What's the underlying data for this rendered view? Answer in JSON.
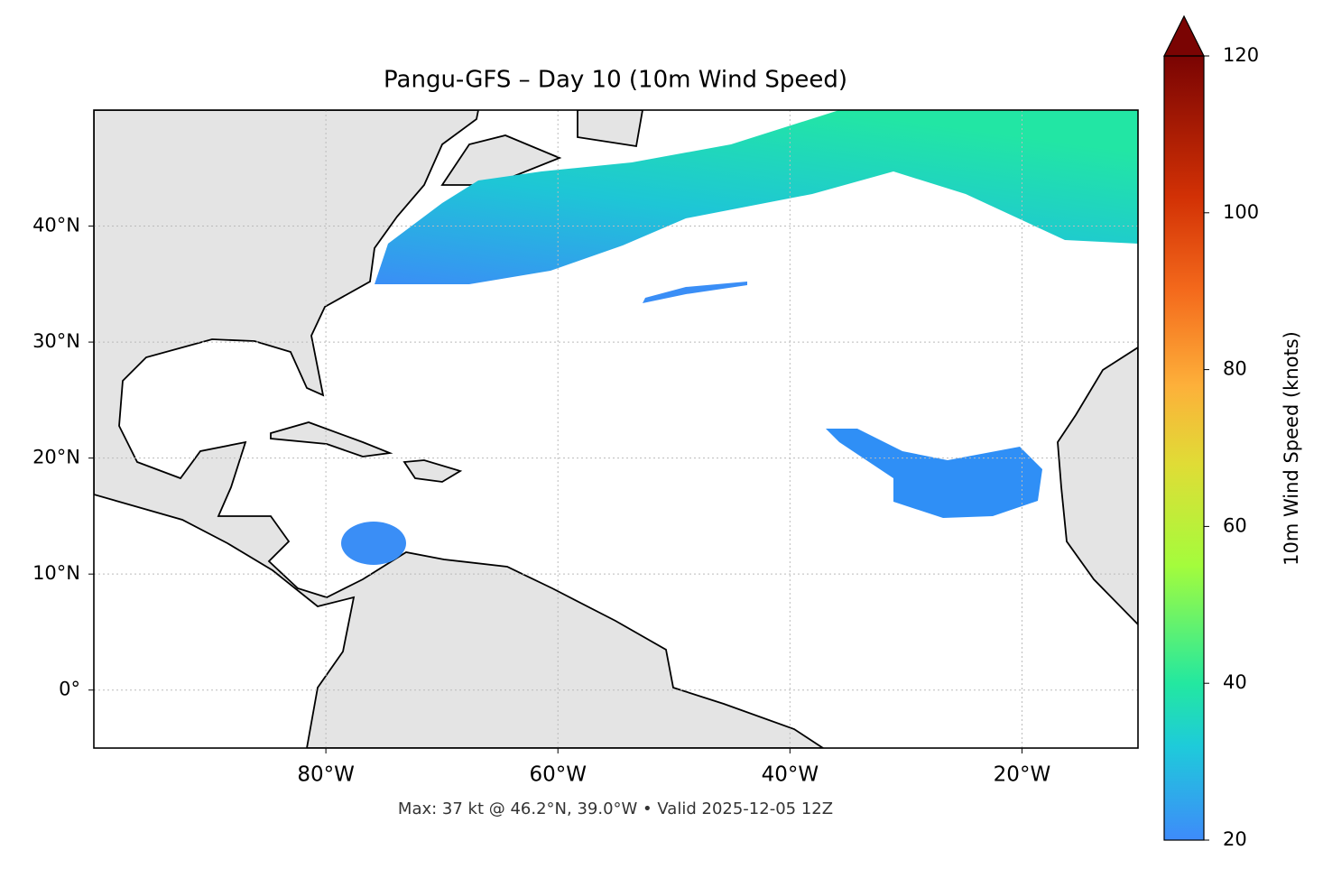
{
  "chart_data": {
    "type": "map",
    "title": "Pangu-GFS – Day 10 (10m Wind Speed)",
    "footnote": "Max: 37 kt @ 46.2°N, 39.0°W • Valid 2025-12-05 12Z",
    "xlim": [
      -100,
      -10
    ],
    "ylim": [
      -5,
      50
    ],
    "xticks": [
      {
        "value": -80,
        "label": "80°W"
      },
      {
        "value": -60,
        "label": "60°W"
      },
      {
        "value": -40,
        "label": "40°W"
      },
      {
        "value": -20,
        "label": "20°W"
      }
    ],
    "yticks": [
      {
        "value": 40,
        "label": "40°N"
      },
      {
        "value": 30,
        "label": "30°N"
      },
      {
        "value": 20,
        "label": "20°N"
      },
      {
        "value": 10,
        "label": "10°N"
      },
      {
        "value": 0,
        "label": "0°"
      }
    ],
    "grid": true,
    "colorbar": {
      "label": "10m Wind Speed (knots)",
      "lim": [
        20,
        120
      ],
      "ticks": [
        20,
        40,
        60,
        80,
        100,
        120
      ],
      "extend": "max"
    }
  }
}
